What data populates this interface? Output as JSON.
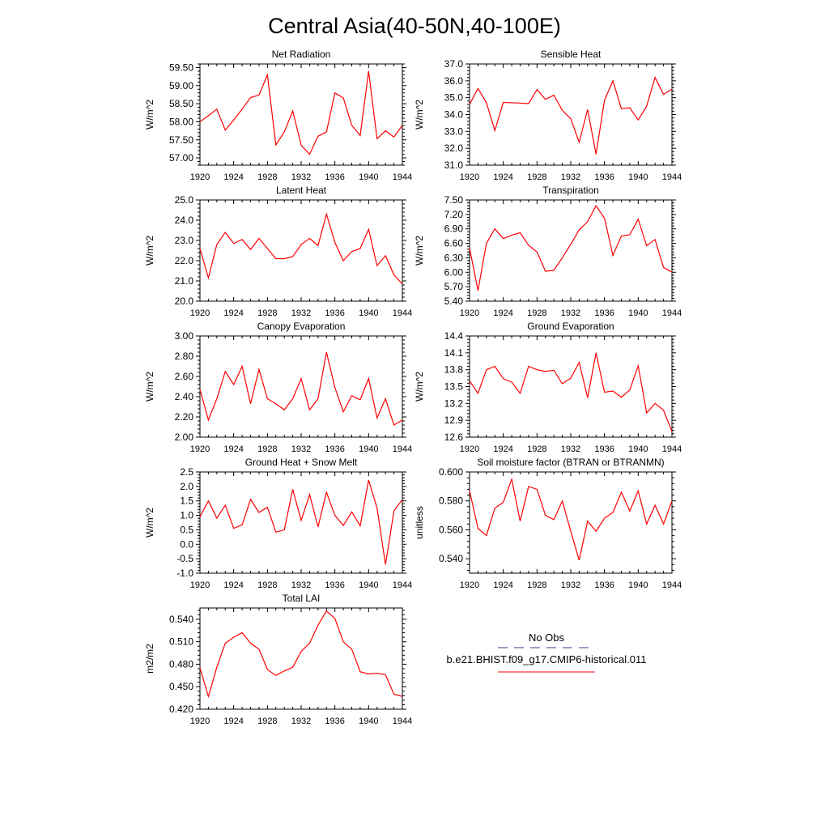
{
  "figure": {
    "title": "Central Asia(40-50N,40-100E)",
    "legend": {
      "obs_label": "No Obs",
      "model_label": "b.e21.BHIST.f09_g17.CMIP6-historical.011",
      "obs_color": "#3a3a8c",
      "model_color": "#ff0000"
    }
  },
  "chart_data": [
    {
      "type": "line",
      "title": "Net Radiation",
      "ylabel": "W/m^2",
      "xlim": [
        1920,
        1944
      ],
      "ylim": [
        56.8,
        59.6
      ],
      "xticks": [
        1920,
        1924,
        1928,
        1932,
        1936,
        1940,
        1944
      ],
      "yticks": [
        57.0,
        57.5,
        58.0,
        58.5,
        59.0,
        59.5
      ],
      "ytick_labels": [
        "57.00",
        "57.50",
        "58.00",
        "58.50",
        "59.00",
        "59.50"
      ],
      "x": [
        1920,
        1921,
        1922,
        1923,
        1924,
        1925,
        1926,
        1927,
        1928,
        1929,
        1930,
        1931,
        1932,
        1933,
        1934,
        1935,
        1936,
        1937,
        1938,
        1939,
        1940,
        1941,
        1942,
        1943,
        1944
      ],
      "series": [
        {
          "color": "#ff0000",
          "values": [
            58.0,
            58.17,
            58.35,
            57.77,
            58.05,
            58.35,
            58.67,
            58.74,
            59.3,
            57.36,
            57.72,
            58.3,
            57.35,
            57.1,
            57.6,
            57.72,
            58.8,
            58.66,
            57.9,
            57.62,
            59.4,
            57.53,
            57.75,
            57.58,
            57.9
          ]
        }
      ]
    },
    {
      "type": "line",
      "title": "Sensible Heat",
      "ylabel": "W/m^2",
      "xlim": [
        1920,
        1944
      ],
      "ylim": [
        31.0,
        37.0
      ],
      "xticks": [
        1920,
        1924,
        1928,
        1932,
        1936,
        1940,
        1944
      ],
      "yticks": [
        31,
        32,
        33,
        34,
        35,
        36,
        37
      ],
      "ytick_labels": [
        "31.0",
        "32.0",
        "33.0",
        "34.0",
        "35.0",
        "36.0",
        "37.0"
      ],
      "x": [
        1920,
        1921,
        1922,
        1923,
        1924,
        1925,
        1926,
        1927,
        1928,
        1929,
        1930,
        1931,
        1932,
        1933,
        1934,
        1935,
        1936,
        1937,
        1938,
        1939,
        1940,
        1941,
        1942,
        1943,
        1944
      ],
      "series": [
        {
          "color": "#ff0000",
          "values": [
            34.6,
            35.55,
            34.7,
            33.05,
            34.72,
            34.7,
            34.68,
            34.65,
            35.48,
            34.9,
            35.15,
            34.25,
            33.75,
            32.35,
            34.3,
            31.65,
            34.85,
            36.0,
            34.35,
            34.4,
            33.68,
            34.5,
            36.2,
            35.2,
            35.5
          ]
        }
      ]
    },
    {
      "type": "line",
      "title": "Latent Heat",
      "ylabel": "W/m^2",
      "xlim": [
        1920,
        1944
      ],
      "ylim": [
        20.0,
        25.0
      ],
      "xticks": [
        1920,
        1924,
        1928,
        1932,
        1936,
        1940,
        1944
      ],
      "yticks": [
        20,
        21,
        22,
        23,
        24,
        25
      ],
      "ytick_labels": [
        "20.0",
        "21.0",
        "22.0",
        "23.0",
        "24.0",
        "25.0"
      ],
      "x": [
        1920,
        1921,
        1922,
        1923,
        1924,
        1925,
        1926,
        1927,
        1928,
        1929,
        1930,
        1931,
        1932,
        1933,
        1934,
        1935,
        1936,
        1937,
        1938,
        1939,
        1940,
        1941,
        1942,
        1943,
        1944
      ],
      "series": [
        {
          "color": "#ff0000",
          "values": [
            22.6,
            21.15,
            22.8,
            23.4,
            22.85,
            23.05,
            22.55,
            23.1,
            22.6,
            22.1,
            22.1,
            22.2,
            22.8,
            23.1,
            22.75,
            24.3,
            22.9,
            22.0,
            22.45,
            22.6,
            23.55,
            21.75,
            22.25,
            21.3,
            20.85
          ]
        }
      ]
    },
    {
      "type": "line",
      "title": "Transpiration",
      "ylabel": "W/m^2",
      "xlim": [
        1920,
        1944
      ],
      "ylim": [
        5.4,
        7.5
      ],
      "xticks": [
        1920,
        1924,
        1928,
        1932,
        1936,
        1940,
        1944
      ],
      "yticks": [
        5.4,
        5.7,
        6.0,
        6.3,
        6.6,
        6.9,
        7.2,
        7.5
      ],
      "ytick_labels": [
        "5.40",
        "5.70",
        "6.00",
        "6.30",
        "6.60",
        "6.90",
        "7.20",
        "7.50"
      ],
      "x": [
        1920,
        1921,
        1922,
        1923,
        1924,
        1925,
        1926,
        1927,
        1928,
        1929,
        1930,
        1931,
        1932,
        1933,
        1934,
        1935,
        1936,
        1937,
        1938,
        1939,
        1940,
        1941,
        1942,
        1943,
        1944
      ],
      "series": [
        {
          "color": "#ff0000",
          "values": [
            6.5,
            5.62,
            6.6,
            6.9,
            6.7,
            6.77,
            6.82,
            6.56,
            6.42,
            6.02,
            6.04,
            6.3,
            6.58,
            6.88,
            7.05,
            7.38,
            7.12,
            6.35,
            6.75,
            6.78,
            7.1,
            6.55,
            6.68,
            6.1,
            6.0
          ]
        }
      ]
    },
    {
      "type": "line",
      "title": "Canopy Evaporation",
      "ylabel": "W/m^2",
      "xlim": [
        1920,
        1944
      ],
      "ylim": [
        2.0,
        3.0
      ],
      "xticks": [
        1920,
        1924,
        1928,
        1932,
        1936,
        1940,
        1944
      ],
      "yticks": [
        2.0,
        2.2,
        2.4,
        2.6,
        2.8,
        3.0
      ],
      "ytick_labels": [
        "2.00",
        "2.20",
        "2.40",
        "2.60",
        "2.80",
        "3.00"
      ],
      "x": [
        1920,
        1921,
        1922,
        1923,
        1924,
        1925,
        1926,
        1927,
        1928,
        1929,
        1930,
        1931,
        1932,
        1933,
        1934,
        1935,
        1936,
        1937,
        1938,
        1939,
        1940,
        1941,
        1942,
        1943,
        1944
      ],
      "series": [
        {
          "color": "#ff0000",
          "values": [
            2.47,
            2.17,
            2.38,
            2.65,
            2.52,
            2.7,
            2.33,
            2.67,
            2.38,
            2.33,
            2.27,
            2.38,
            2.58,
            2.27,
            2.38,
            2.84,
            2.49,
            2.25,
            2.41,
            2.37,
            2.58,
            2.19,
            2.38,
            2.12,
            2.17
          ]
        }
      ]
    },
    {
      "type": "line",
      "title": "Ground Evaporation",
      "ylabel": "W/m^2",
      "xlim": [
        1920,
        1944
      ],
      "ylim": [
        12.6,
        14.4
      ],
      "xticks": [
        1920,
        1924,
        1928,
        1932,
        1936,
        1940,
        1944
      ],
      "yticks": [
        12.6,
        12.9,
        13.2,
        13.5,
        13.8,
        14.1,
        14.4
      ],
      "ytick_labels": [
        "12.6",
        "12.9",
        "13.2",
        "13.5",
        "13.8",
        "14.1",
        "14.4"
      ],
      "x": [
        1920,
        1921,
        1922,
        1923,
        1924,
        1925,
        1926,
        1927,
        1928,
        1929,
        1930,
        1931,
        1932,
        1933,
        1934,
        1935,
        1936,
        1937,
        1938,
        1939,
        1940,
        1941,
        1942,
        1943,
        1944
      ],
      "series": [
        {
          "color": "#ff0000",
          "values": [
            13.6,
            13.38,
            13.8,
            13.86,
            13.64,
            13.58,
            13.38,
            13.86,
            13.8,
            13.77,
            13.79,
            13.55,
            13.65,
            13.93,
            13.3,
            14.1,
            13.4,
            13.42,
            13.31,
            13.44,
            13.87,
            13.03,
            13.2,
            13.08,
            12.7
          ]
        }
      ]
    },
    {
      "type": "line",
      "title": "Ground Heat + Snow Melt",
      "ylabel": "W/m^2",
      "xlim": [
        1920,
        1944
      ],
      "ylim": [
        -1.0,
        2.5
      ],
      "xticks": [
        1920,
        1924,
        1928,
        1932,
        1936,
        1940,
        1944
      ],
      "yticks": [
        -1.0,
        -0.5,
        0.0,
        0.5,
        1.0,
        1.5,
        2.0,
        2.5
      ],
      "ytick_labels": [
        "-1.0",
        "-0.5",
        "0.0",
        "0.5",
        "1.0",
        "1.5",
        "2.0",
        "2.5"
      ],
      "x": [
        1920,
        1921,
        1922,
        1923,
        1924,
        1925,
        1926,
        1927,
        1928,
        1929,
        1930,
        1931,
        1932,
        1933,
        1934,
        1935,
        1936,
        1937,
        1938,
        1939,
        1940,
        1941,
        1942,
        1943,
        1944
      ],
      "series": [
        {
          "color": "#ff0000",
          "values": [
            0.95,
            1.5,
            0.9,
            1.35,
            0.55,
            0.67,
            1.55,
            1.1,
            1.28,
            0.42,
            0.5,
            1.9,
            0.82,
            1.72,
            0.6,
            1.8,
            1.0,
            0.65,
            1.12,
            0.64,
            2.22,
            1.25,
            -0.7,
            1.15,
            1.55
          ]
        }
      ]
    },
    {
      "type": "line",
      "title": "Soil moisture factor (BTRAN or BTRANMN)",
      "ylabel": "unitless",
      "xlim": [
        1920,
        1944
      ],
      "ylim": [
        0.53,
        0.6
      ],
      "xticks": [
        1920,
        1924,
        1928,
        1932,
        1936,
        1940,
        1944
      ],
      "yticks": [
        0.54,
        0.56,
        0.58,
        0.6
      ],
      "ytick_labels": [
        "0.540",
        "0.560",
        "0.580",
        "0.600"
      ],
      "x": [
        1920,
        1921,
        1922,
        1923,
        1924,
        1925,
        1926,
        1927,
        1928,
        1929,
        1930,
        1931,
        1932,
        1933,
        1934,
        1935,
        1936,
        1937,
        1938,
        1939,
        1940,
        1941,
        1942,
        1943,
        1944
      ],
      "series": [
        {
          "color": "#ff0000",
          "values": [
            0.587,
            0.561,
            0.556,
            0.575,
            0.579,
            0.595,
            0.566,
            0.59,
            0.588,
            0.57,
            0.567,
            0.58,
            0.559,
            0.539,
            0.566,
            0.559,
            0.568,
            0.572,
            0.586,
            0.573,
            0.587,
            0.564,
            0.577,
            0.564,
            0.58
          ]
        }
      ]
    },
    {
      "type": "line",
      "title": "Total LAI",
      "ylabel": "m2/m2",
      "xlim": [
        1920,
        1944
      ],
      "ylim": [
        0.42,
        0.555
      ],
      "xticks": [
        1920,
        1924,
        1928,
        1932,
        1936,
        1940,
        1944
      ],
      "yticks": [
        0.42,
        0.45,
        0.48,
        0.51,
        0.54
      ],
      "ytick_labels": [
        "0.420",
        "0.450",
        "0.480",
        "0.510",
        "0.540"
      ],
      "x": [
        1920,
        1921,
        1922,
        1923,
        1924,
        1925,
        1926,
        1927,
        1928,
        1929,
        1930,
        1931,
        1932,
        1933,
        1934,
        1935,
        1936,
        1937,
        1938,
        1939,
        1940,
        1941,
        1942,
        1943,
        1944
      ],
      "series": [
        {
          "color": "#ff0000",
          "values": [
            0.475,
            0.437,
            0.476,
            0.508,
            0.516,
            0.522,
            0.508,
            0.5,
            0.473,
            0.465,
            0.471,
            0.476,
            0.497,
            0.508,
            0.532,
            0.551,
            0.541,
            0.51,
            0.5,
            0.47,
            0.467,
            0.468,
            0.466,
            0.44,
            0.437
          ]
        }
      ]
    }
  ]
}
